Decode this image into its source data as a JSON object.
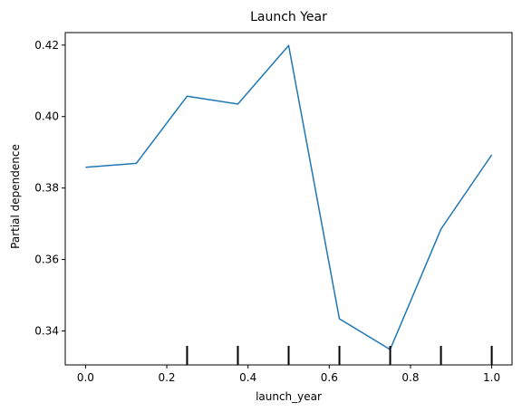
{
  "chart_data": {
    "type": "line",
    "title": "Launch Year",
    "xlabel": "launch_year",
    "ylabel": "Partial dependence",
    "xlim": [
      -0.05,
      1.05
    ],
    "ylim": [
      0.3305,
      0.4235
    ],
    "x_ticks": [
      "0.0",
      "0.2",
      "0.4",
      "0.6",
      "0.8",
      "1.0"
    ],
    "y_ticks": [
      "0.34",
      "0.36",
      "0.38",
      "0.40",
      "0.42"
    ],
    "series": [
      {
        "color": "#1f77b4",
        "x": [
          0.0,
          0.125,
          0.25,
          0.375,
          0.5,
          0.625,
          0.75,
          0.875,
          1.0
        ],
        "y": [
          0.3858,
          0.3869,
          0.4057,
          0.4035,
          0.4199,
          0.3434,
          0.3348,
          0.3685,
          0.3893
        ]
      }
    ],
    "rug_x": [
      0.25,
      0.375,
      0.5,
      0.625,
      0.75,
      0.875,
      1.0
    ],
    "grid": false,
    "legend": "none"
  }
}
